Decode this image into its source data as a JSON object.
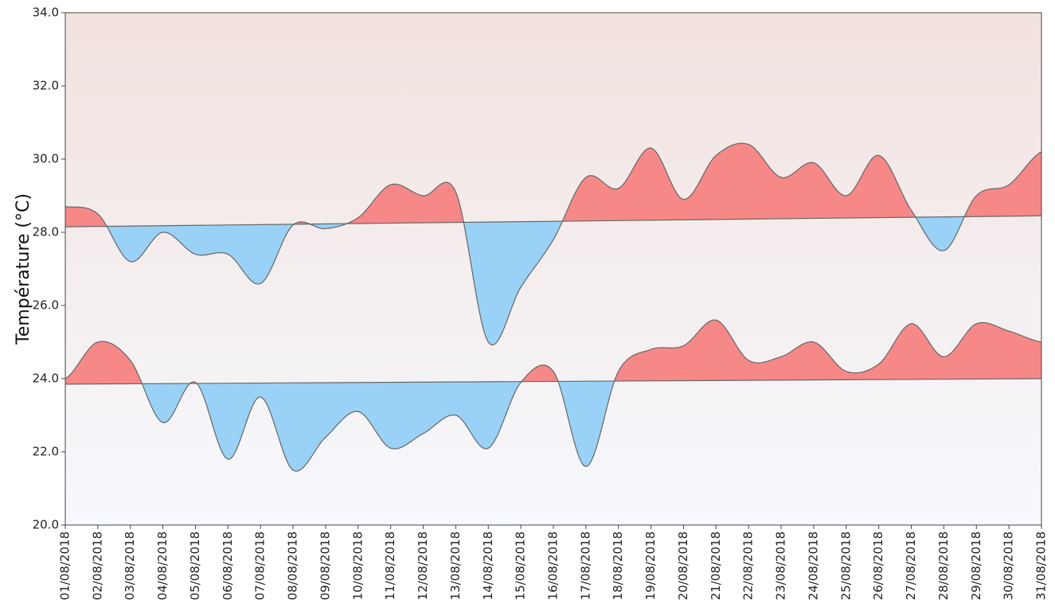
{
  "chart_data": {
    "type": "area",
    "ylabel": "Température (°C)",
    "xlabel": "",
    "title": "",
    "ylim": [
      20,
      34
    ],
    "yticks": [
      20,
      22,
      24,
      26,
      28,
      30,
      32,
      34
    ],
    "ytick_labels": [
      "20.0",
      "22.0",
      "24.0",
      "26.0",
      "28.0",
      "30.0",
      "32.0",
      "34.0"
    ],
    "grid": false,
    "x": [
      "01/08/2018",
      "02/08/2018",
      "03/08/2018",
      "04/08/2018",
      "05/08/2018",
      "06/08/2018",
      "07/08/2018",
      "08/08/2018",
      "09/08/2018",
      "10/08/2018",
      "11/08/2018",
      "12/08/2018",
      "13/08/2018",
      "14/08/2018",
      "15/08/2018",
      "16/08/2018",
      "17/08/2018",
      "18/08/2018",
      "19/08/2018",
      "20/08/2018",
      "21/08/2018",
      "22/08/2018",
      "23/08/2018",
      "24/08/2018",
      "25/08/2018",
      "26/08/2018",
      "27/08/2018",
      "28/08/2018",
      "29/08/2018",
      "30/08/2018",
      "31/08/2018"
    ],
    "series": [
      {
        "role": "daily-maximum",
        "values": [
          28.7,
          28.5,
          27.2,
          28.0,
          27.4,
          27.4,
          26.6,
          28.2,
          28.1,
          28.4,
          29.3,
          29.0,
          29.1,
          25.0,
          26.5,
          27.8,
          29.5,
          29.2,
          30.3,
          28.9,
          30.1,
          30.4,
          29.5,
          29.9,
          29.0,
          30.1,
          28.6,
          27.5,
          29.0,
          29.3,
          30.2
        ]
      },
      {
        "role": "daily-minimum",
        "values": [
          24.0,
          25.0,
          24.5,
          22.8,
          23.9,
          21.8,
          23.5,
          21.5,
          22.4,
          23.1,
          22.1,
          22.5,
          23.0,
          22.1,
          23.9,
          24.2,
          21.6,
          24.2,
          24.8,
          24.9,
          25.6,
          24.5,
          24.6,
          25.0,
          24.2,
          24.4,
          25.5,
          24.6,
          25.5,
          25.3,
          25.0
        ]
      }
    ],
    "normals": [
      {
        "role": "normal-maximum",
        "start": 28.15,
        "end": 28.45
      },
      {
        "role": "normal-minimum",
        "start": 23.85,
        "end": 24.0
      }
    ],
    "colors": {
      "above": "#f78888",
      "below": "#99d2f6",
      "line": "#666666",
      "bg_top": "#f2e2de",
      "bg_bottom": "#f6f9fe",
      "axis": "#444444"
    }
  }
}
